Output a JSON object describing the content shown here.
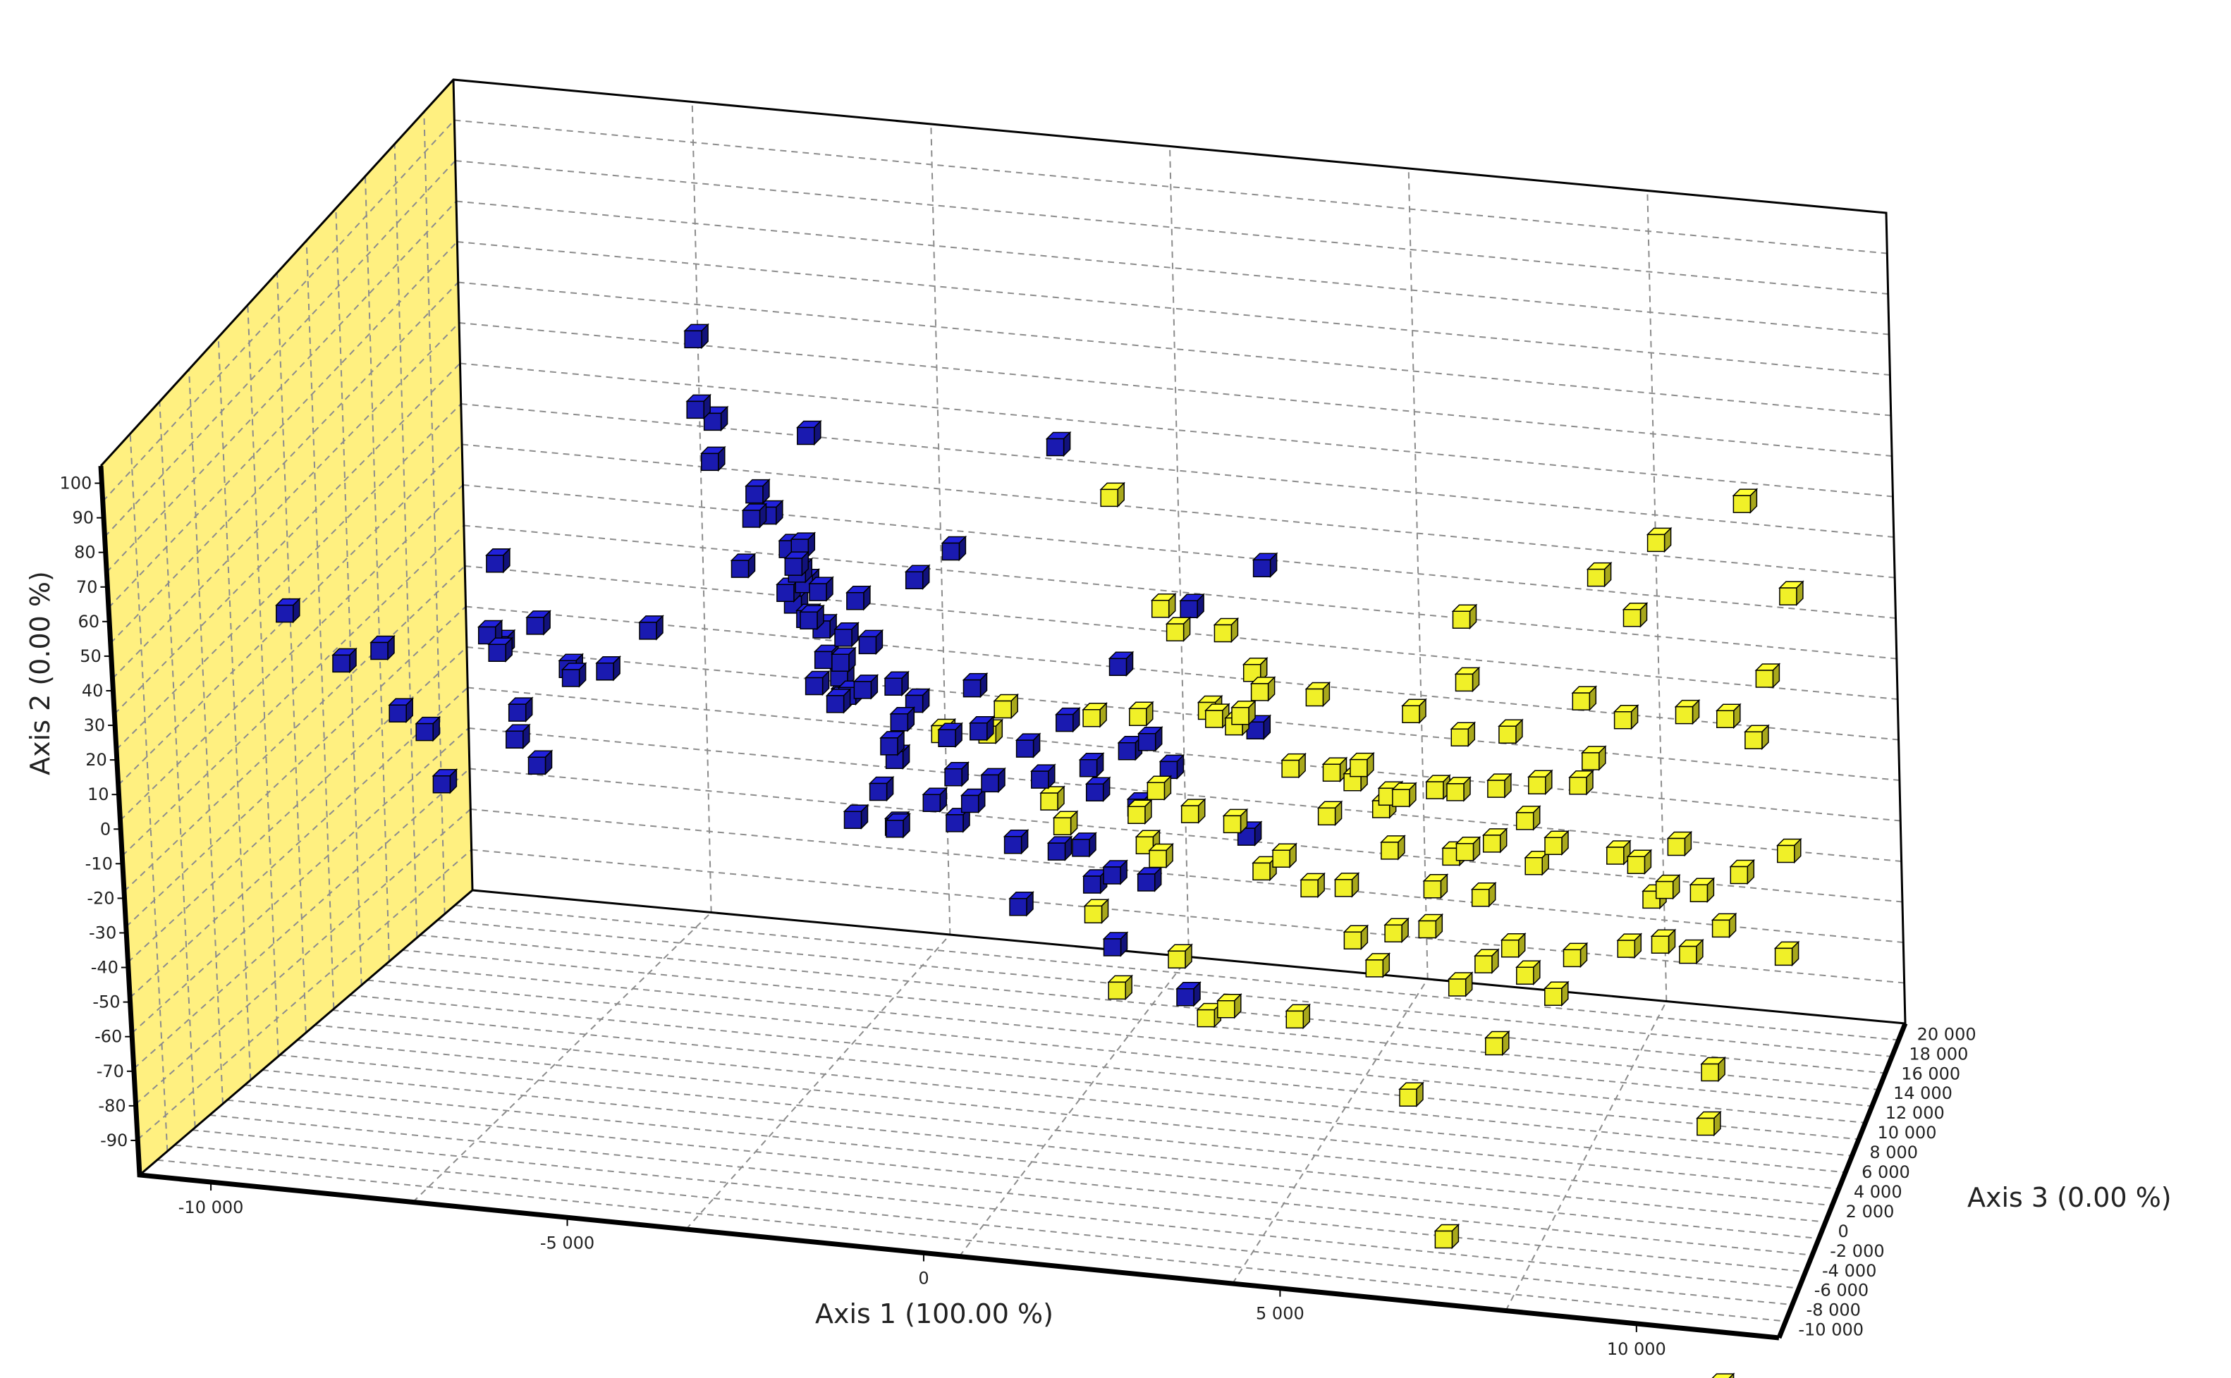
{
  "chart_data": {
    "type": "scatter3d",
    "xlabel": "Axis 1 (100.00 %)",
    "ylabel": "Axis 2 (0.00 %)",
    "zlabel": "Axis 3 (0.00 %)",
    "xticks": [
      "-10 000",
      "-5 000",
      "0",
      "5 000",
      "10 000"
    ],
    "yticks": [
      "100",
      "90",
      "80",
      "70",
      "60",
      "50",
      "40",
      "30",
      "20",
      "10",
      "0",
      "-10",
      "-20",
      "-30",
      "-40",
      "-50",
      "-60",
      "-70",
      "-80",
      "-90"
    ],
    "zticks": [
      "20 000",
      "18 000",
      "16 000",
      "14 000",
      "12 000",
      "10 000",
      "8 000",
      "6 000",
      "4 000",
      "2 000",
      "0",
      "-2 000",
      "-4 000",
      "-6 000",
      "-8 000",
      "-10 000"
    ],
    "xlim": [
      -11000,
      12000
    ],
    "ylim": [
      -95,
      105
    ],
    "zlim": [
      -10000,
      20000
    ],
    "grid": true,
    "side_wall_color": "#FFF080",
    "series": [
      {
        "color": "#1A1AB0",
        "points": [
          [
            -10200,
            32,
            0
          ],
          [
            -9400,
            20,
            0
          ],
          [
            -9000,
            21,
            1000
          ],
          [
            -8600,
            8,
            0
          ],
          [
            -8300,
            2,
            500
          ],
          [
            -8000,
            -10,
            0
          ],
          [
            -7400,
            44,
            2000
          ],
          [
            -7400,
            28,
            1000
          ],
          [
            -7300,
            24,
            1500
          ],
          [
            -7100,
            27,
            0
          ],
          [
            -7000,
            25,
            3000
          ],
          [
            -7000,
            8,
            1000
          ],
          [
            -6900,
            4,
            0
          ],
          [
            -6900,
            -9,
            2000
          ],
          [
            -6700,
            11,
            4000
          ],
          [
            -6500,
            12,
            3000
          ],
          [
            -6300,
            8,
            5000
          ],
          [
            -6100,
            10,
            8000
          ],
          [
            -5900,
            73,
            12000
          ],
          [
            -5900,
            55,
            12000
          ],
          [
            -5800,
            49,
            13000
          ],
          [
            -5700,
            42,
            12000
          ],
          [
            -5600,
            9,
            14000
          ],
          [
            -5500,
            25,
            15000
          ],
          [
            -5400,
            22,
            14000
          ],
          [
            -5300,
            20,
            15000
          ],
          [
            -5100,
            -5,
            16000
          ],
          [
            -5000,
            12,
            15000
          ],
          [
            -4900,
            4,
            14000
          ],
          [
            -4800,
            -25,
            16000
          ],
          [
            -4700,
            -33,
            18000
          ],
          [
            -4500,
            19,
            13000
          ],
          [
            -4300,
            13,
            12000
          ],
          [
            -4200,
            51,
            12000
          ],
          [
            -4100,
            22,
            10000
          ],
          [
            -4000,
            27,
            9000
          ],
          [
            -3900,
            5,
            11000
          ],
          [
            -3800,
            -10,
            12000
          ],
          [
            -3700,
            17,
            8000
          ],
          [
            -3500,
            20,
            7000
          ],
          [
            -3400,
            -7,
            9000
          ],
          [
            -3300,
            10,
            7000
          ],
          [
            -3200,
            31,
            6000
          ],
          [
            -3100,
            -2,
            8000
          ],
          [
            -3000,
            2,
            6000
          ],
          [
            -2900,
            13,
            6000
          ],
          [
            -2800,
            -28,
            6000
          ],
          [
            -2700,
            23,
            5000
          ],
          [
            -2600,
            -38,
            9000
          ],
          [
            -2500,
            33,
            5000
          ],
          [
            -2400,
            -20,
            6000
          ],
          [
            -2300,
            13,
            4000
          ],
          [
            -2200,
            25,
            4000
          ],
          [
            -2000,
            -8,
            5000
          ],
          [
            -1900,
            -23,
            4000
          ],
          [
            -1800,
            2,
            3000
          ],
          [
            -1700,
            18,
            3000
          ],
          [
            -1600,
            40,
            5000
          ],
          [
            -1500,
            12,
            2000
          ],
          [
            -1400,
            14,
            3000
          ],
          [
            -1200,
            -12,
            3000
          ],
          [
            -1000,
            -20,
            4000
          ],
          [
            -900,
            52,
            4000
          ],
          [
            -800,
            9,
            2000
          ],
          [
            -600,
            2,
            1000
          ],
          [
            -500,
            -8,
            2000
          ],
          [
            -400,
            23,
            2000
          ],
          [
            -200,
            15,
            1000
          ],
          [
            0,
            3,
            500
          ],
          [
            200,
            68,
            8000
          ],
          [
            300,
            -13,
            500
          ],
          [
            400,
            -28,
            0
          ],
          [
            600,
            15,
            0
          ],
          [
            800,
            7,
            0
          ],
          [
            1000,
            -12,
            0
          ],
          [
            1200,
            23,
            0
          ],
          [
            1300,
            -12,
            500
          ],
          [
            1400,
            8,
            1000
          ],
          [
            1500,
            -20,
            0
          ],
          [
            1600,
            5,
            0
          ],
          [
            1700,
            -38,
            500
          ],
          [
            1800,
            -17,
            0
          ],
          [
            1900,
            36,
            1000
          ],
          [
            2100,
            17,
            0
          ],
          [
            2200,
            2,
            0
          ],
          [
            2300,
            -18,
            0
          ],
          [
            2400,
            20,
            0
          ],
          [
            2700,
            13,
            0
          ],
          [
            2800,
            -48,
            0
          ],
          [
            3100,
            57,
            0
          ],
          [
            3800,
            -3,
            0
          ],
          [
            4000,
            26,
            0
          ],
          [
            4200,
            70,
            0
          ]
        ]
      },
      {
        "color": "#F0F028",
        "points": [
          [
            -1300,
            0,
            5000
          ],
          [
            -200,
            11,
            2000
          ],
          [
            300,
            25,
            0
          ],
          [
            800,
            -2,
            1000
          ],
          [
            1100,
            -5,
            0
          ],
          [
            1500,
            -28,
            0
          ],
          [
            1600,
            25,
            0
          ],
          [
            1800,
            -48,
            0
          ],
          [
            2000,
            85,
            0
          ],
          [
            2200,
            0,
            0
          ],
          [
            2300,
            -8,
            0
          ],
          [
            2400,
            30,
            -1000
          ],
          [
            2500,
            7,
            0
          ],
          [
            2600,
            -8,
            -1000
          ],
          [
            2700,
            -38,
            0
          ],
          [
            2800,
            60,
            -1000
          ],
          [
            3000,
            54,
            -1000
          ],
          [
            3100,
            5,
            -1000
          ],
          [
            3200,
            -50,
            -1000
          ],
          [
            3300,
            30,
            0
          ],
          [
            3400,
            28,
            0
          ],
          [
            3500,
            -47,
            -1000
          ],
          [
            3600,
            0,
            0
          ],
          [
            3700,
            55,
            -1000
          ],
          [
            3800,
            30,
            -1000
          ],
          [
            3900,
            33,
            -1000
          ],
          [
            4000,
            -12,
            0
          ],
          [
            4100,
            45,
            -1000
          ],
          [
            4200,
            40,
            -1000
          ],
          [
            4300,
            -8,
            0
          ],
          [
            4500,
            -48,
            -1000
          ],
          [
            4600,
            20,
            -1000
          ],
          [
            4800,
            -12,
            -1000
          ],
          [
            5000,
            40,
            -1000
          ],
          [
            5100,
            8,
            -1000
          ],
          [
            5200,
            20,
            -1000
          ],
          [
            5300,
            -11,
            -1000
          ],
          [
            5400,
            -25,
            -1000
          ],
          [
            5500,
            18,
            -1000
          ],
          [
            5600,
            22,
            -1000
          ],
          [
            5700,
            -32,
            -1000
          ],
          [
            5800,
            8,
            0
          ],
          [
            5900,
            -3,
            0
          ],
          [
            6000,
            -22,
            -1000
          ],
          [
            6000,
            15,
            -1000
          ],
          [
            6200,
            15,
            -1000
          ],
          [
            6300,
            -60,
            -3000
          ],
          [
            6400,
            38,
            -1000
          ],
          [
            6500,
            -20,
            -1000
          ],
          [
            6600,
            -9,
            -1000
          ],
          [
            6700,
            18,
            -1000
          ],
          [
            6800,
            -3,
            0
          ],
          [
            6900,
            -92,
            -5000
          ],
          [
            6900,
            -35,
            -1000
          ],
          [
            7000,
            18,
            -1000
          ],
          [
            7100,
            2,
            -1000
          ],
          [
            7100,
            33,
            -1000
          ],
          [
            7200,
            65,
            -1000
          ],
          [
            7200,
            48,
            -1000
          ],
          [
            7300,
            -28,
            -1000
          ],
          [
            7300,
            -10,
            -1000
          ],
          [
            7400,
            -50,
            -1000
          ],
          [
            7500,
            5,
            -1000
          ],
          [
            7600,
            20,
            -1000
          ],
          [
            7700,
            -23,
            -1000
          ],
          [
            7800,
            35,
            -1000
          ],
          [
            7900,
            -30,
            -1000
          ],
          [
            8000,
            12,
            -1000
          ],
          [
            8100,
            0,
            -1000
          ],
          [
            8200,
            22,
            -1000
          ],
          [
            8300,
            -35,
            -1000
          ],
          [
            8400,
            6,
            -1000
          ],
          [
            8600,
            -24,
            -1000
          ],
          [
            8800,
            23,
            -1000
          ],
          [
            8900,
            46,
            -1000
          ],
          [
            9000,
            30,
            -1000
          ],
          [
            9200,
            80,
            -1000
          ],
          [
            9300,
            5,
            -1000
          ],
          [
            9400,
            -20,
            -1000
          ],
          [
            9500,
            42,
            -1000
          ],
          [
            9600,
            3,
            -1000
          ],
          [
            9700,
            70,
            -1000
          ],
          [
            9800,
            -6,
            -1000
          ],
          [
            9900,
            -18,
            -1000
          ],
          [
            10000,
            -3,
            -1000
          ],
          [
            10100,
            91,
            -1000
          ],
          [
            10200,
            9,
            -1000
          ],
          [
            10300,
            -20,
            -1000
          ],
          [
            10400,
            45,
            -1000
          ],
          [
            10500,
            -3,
            -1000
          ],
          [
            10600,
            -60,
            -3000
          ],
          [
            10700,
            -45,
            -3000
          ],
          [
            10800,
            -12,
            -1000
          ],
          [
            10900,
            -120,
            -7000
          ],
          [
            11000,
            45,
            -1000
          ],
          [
            11100,
            3,
            -1000
          ],
          [
            11300,
            100,
            0
          ],
          [
            11400,
            40,
            -1000
          ],
          [
            11600,
            57,
            -1000
          ],
          [
            11700,
            -18,
            -1000
          ],
          [
            11800,
            10,
            -1000
          ],
          [
            12000,
            80,
            -1000
          ]
        ]
      }
    ]
  }
}
